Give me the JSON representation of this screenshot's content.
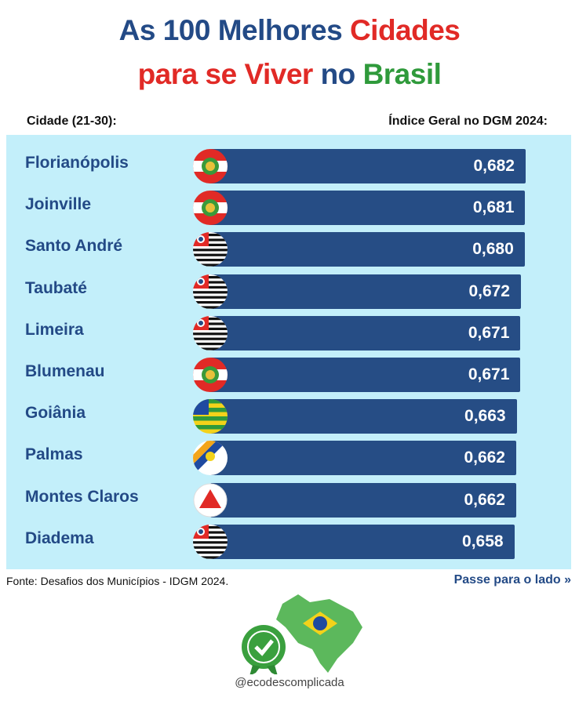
{
  "title": {
    "l1a": "As 100 Melhores ",
    "l1b": "Cidades",
    "l2a": "para se Viver ",
    "l2b": "no ",
    "l2c": "Brasil"
  },
  "colors": {
    "blue": "#234a86",
    "red": "#e12a26",
    "green": "#2f9a3b",
    "bar": "#264d85",
    "panel": "#c3effa"
  },
  "chart_data": {
    "type": "bar",
    "title": "As 100 Melhores Cidades para se Viver no Brasil",
    "xlabel": "Cidade (21-30):",
    "ylabel": "Índice Geral no DGM 2024:",
    "categories": [
      "Florianópolis",
      "Joinville",
      "Santo André",
      "Taubaté",
      "Limeira",
      "Blumenau",
      "Goiânia",
      "Palmas",
      "Montes Claros",
      "Diadema"
    ],
    "values": [
      "0,682",
      "0,681",
      "0,680",
      "0,672",
      "0,671",
      "0,671",
      "0,663",
      "0,662",
      "0,662",
      "0,658"
    ],
    "numeric": [
      0.682,
      0.681,
      0.68,
      0.672,
      0.671,
      0.671,
      0.663,
      0.662,
      0.662,
      0.658
    ],
    "flags": [
      "SC",
      "SC",
      "SP",
      "SP",
      "SP",
      "SC",
      "GO",
      "TO",
      "MG",
      "SP"
    ]
  },
  "footer": {
    "source": "Fonte: Desafios dos Municípios - IDGM 2024.",
    "next": "Passe para o lado »",
    "handle": "@ecodescomplicada"
  }
}
